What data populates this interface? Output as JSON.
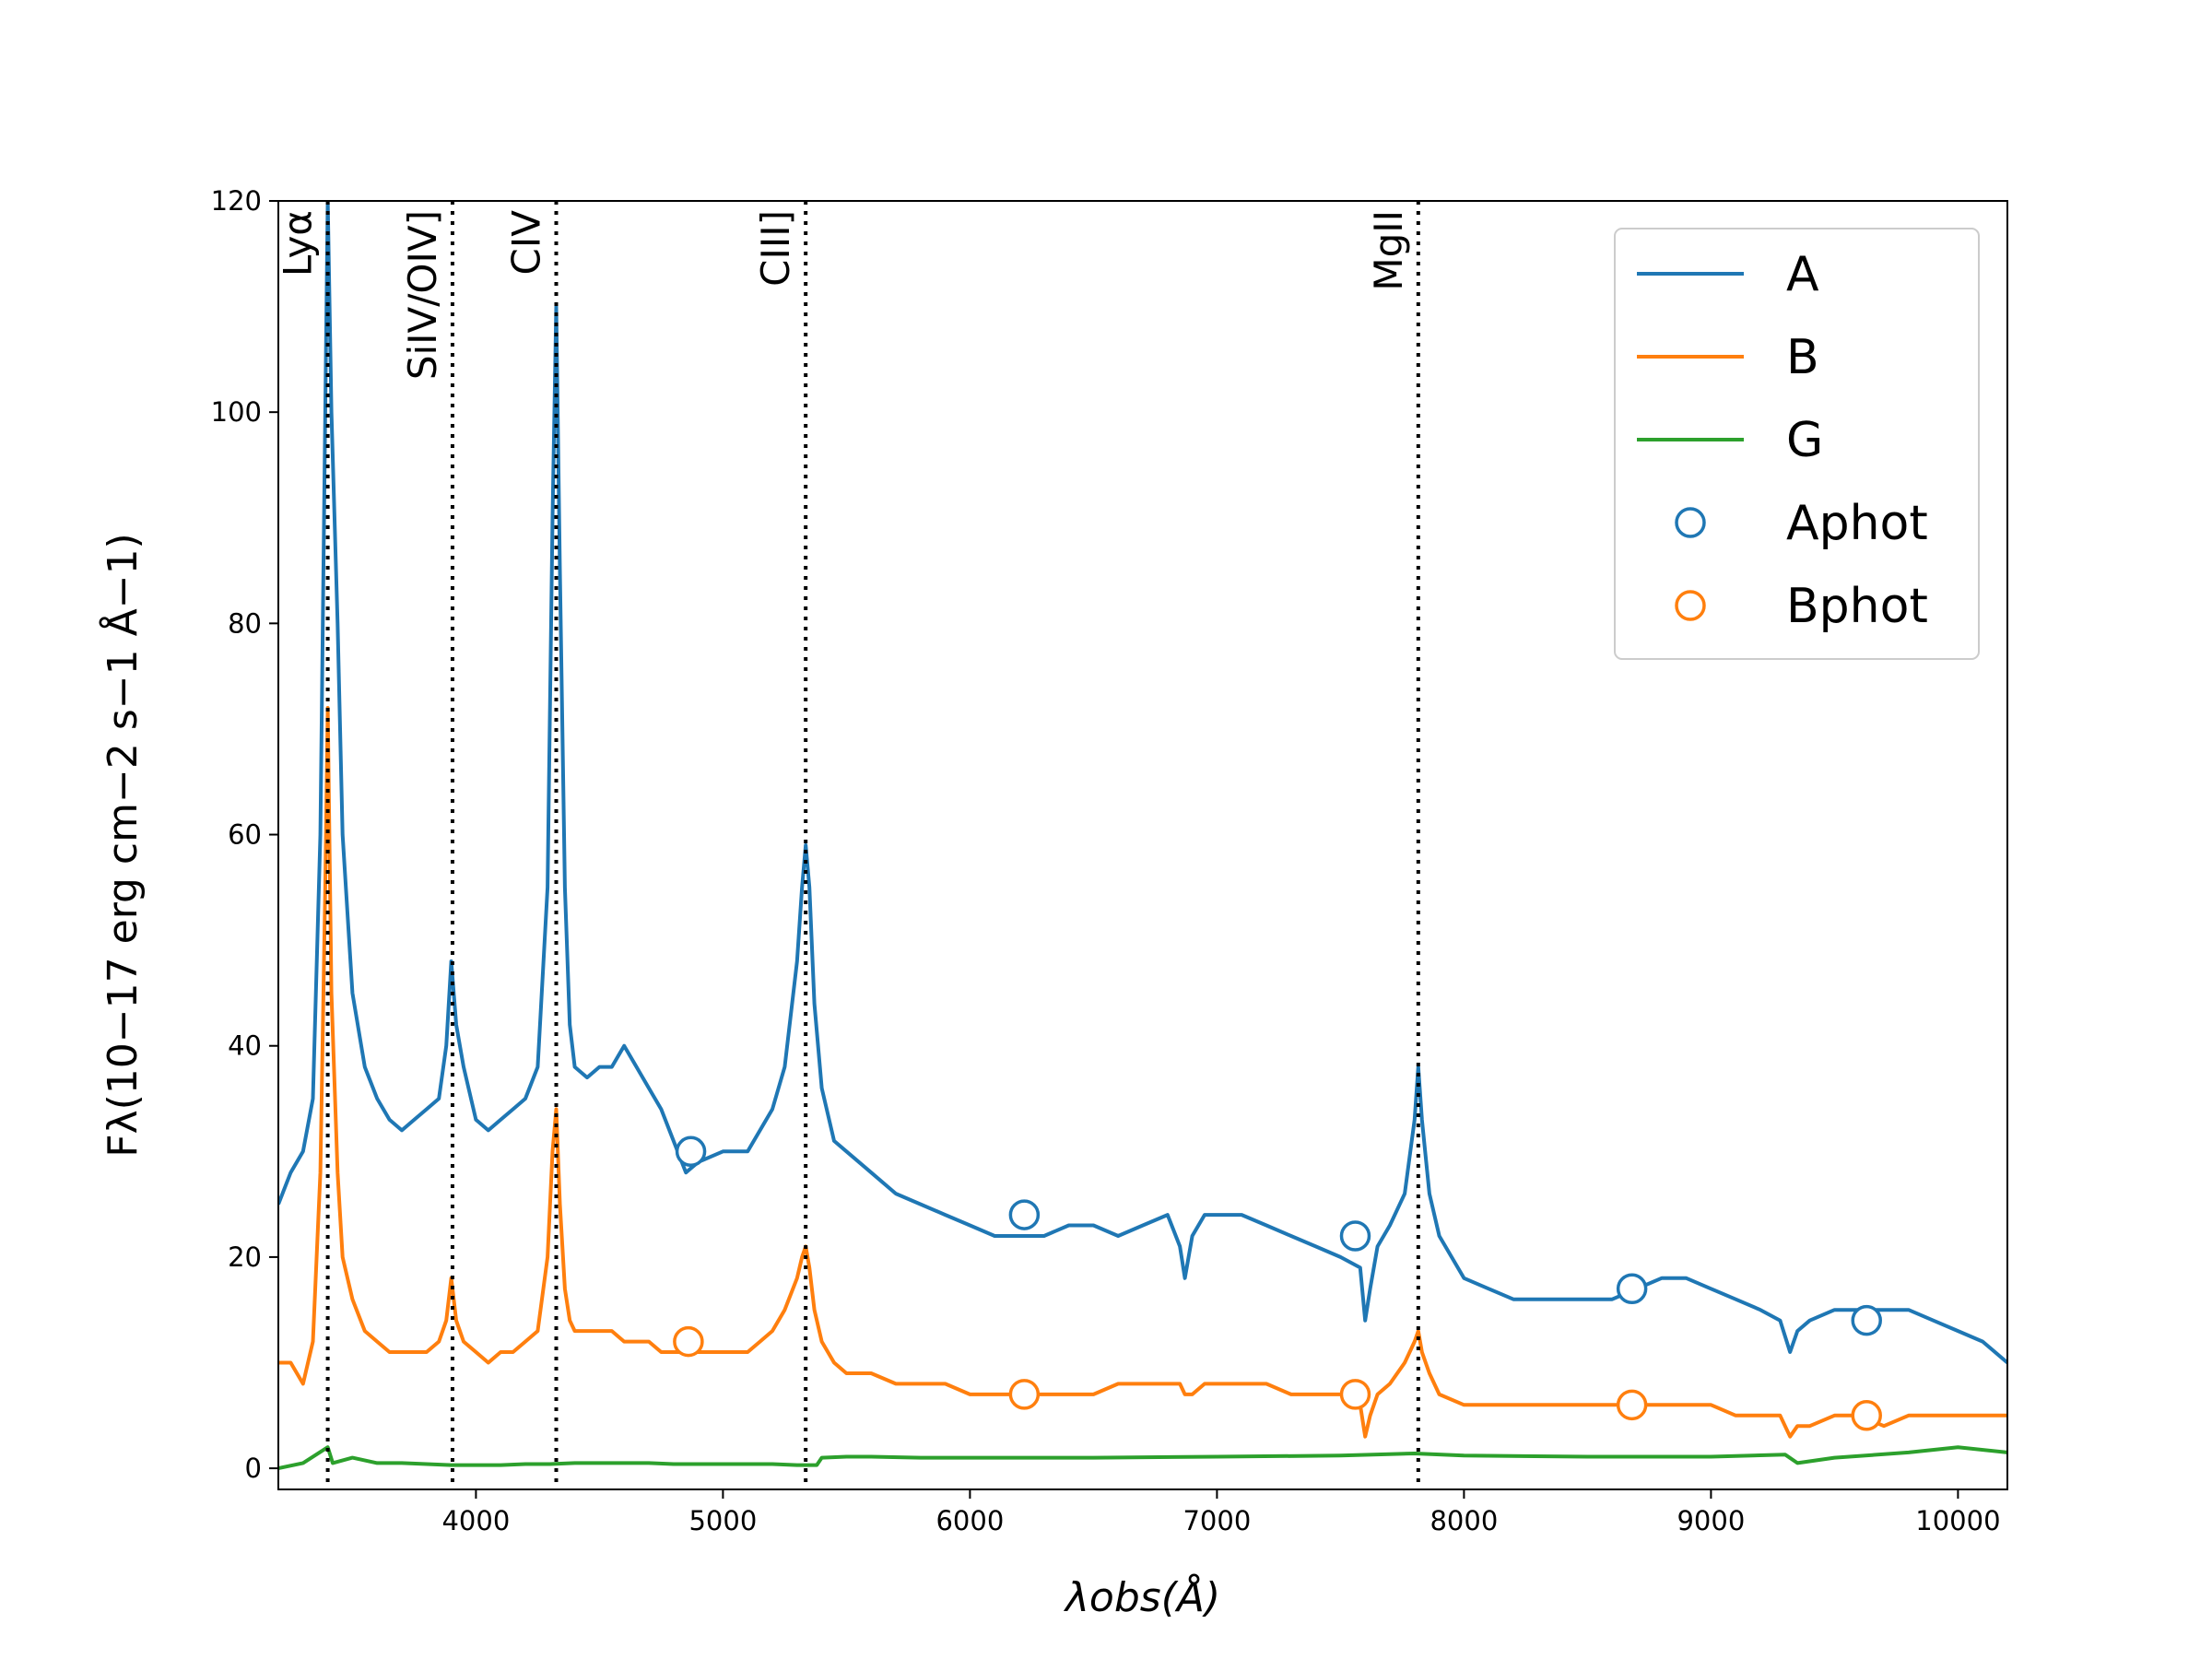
{
  "chart_data": {
    "type": "line",
    "title": "",
    "xlabel": "λobs(Å)",
    "ylabel": "Fλ(10−17 erg cm−2 s−1 Å−1)",
    "xlim": [
      3200,
      10200
    ],
    "ylim": [
      -2,
      120
    ],
    "xticks": [
      4000,
      5000,
      6000,
      7000,
      8000,
      9000,
      10000
    ],
    "yticks": [
      0,
      20,
      40,
      60,
      80,
      100,
      120
    ],
    "legend": {
      "location": "top-right",
      "entries": [
        "A",
        "B",
        "G",
        "Aphot",
        "Bphot"
      ]
    },
    "colors": {
      "A": "#1f77b4",
      "B": "#ff7f0e",
      "G": "#2ca02c",
      "lines": "#000000"
    },
    "emission_lines": [
      {
        "label": "Lyα",
        "wavelength": 3400
      },
      {
        "label": "SiIV/OIV]",
        "wavelength": 3905
      },
      {
        "label": "CIV",
        "wavelength": 4325
      },
      {
        "label": "CIII]",
        "wavelength": 5335
      },
      {
        "label": "MgII",
        "wavelength": 7815
      }
    ],
    "series": [
      {
        "name": "A",
        "kind": "line",
        "x": [
          3200,
          3250,
          3300,
          3340,
          3370,
          3390,
          3400,
          3415,
          3440,
          3460,
          3500,
          3550,
          3600,
          3650,
          3700,
          3750,
          3800,
          3850,
          3880,
          3900,
          3920,
          3950,
          4000,
          4050,
          4100,
          4150,
          4200,
          4250,
          4290,
          4310,
          4325,
          4340,
          4360,
          4380,
          4400,
          4450,
          4500,
          4550,
          4600,
          4650,
          4700,
          4750,
          4800,
          4850,
          4900,
          5000,
          5100,
          5150,
          5200,
          5250,
          5300,
          5320,
          5335,
          5350,
          5370,
          5400,
          5450,
          5500,
          5600,
          5700,
          5800,
          5900,
          6000,
          6100,
          6200,
          6300,
          6400,
          6500,
          6600,
          6700,
          6800,
          6850,
          6870,
          6900,
          6950,
          7000,
          7100,
          7200,
          7300,
          7400,
          7500,
          7580,
          7600,
          7620,
          7650,
          7700,
          7760,
          7800,
          7815,
          7830,
          7860,
          7900,
          8000,
          8100,
          8200,
          8300,
          8400,
          8500,
          8600,
          8700,
          8800,
          8900,
          9000,
          9100,
          9200,
          9280,
          9320,
          9350,
          9400,
          9500,
          9600,
          9700,
          9800,
          9900,
          10000,
          10100,
          10200
        ],
        "y": [
          25,
          28,
          30,
          35,
          60,
          100,
          120,
          100,
          80,
          60,
          45,
          38,
          35,
          33,
          32,
          33,
          34,
          35,
          40,
          48,
          42,
          38,
          33,
          32,
          33,
          34,
          35,
          38,
          55,
          90,
          110,
          85,
          55,
          42,
          38,
          37,
          38,
          38,
          40,
          38,
          36,
          34,
          31,
          28,
          29,
          30,
          30,
          32,
          34,
          38,
          48,
          55,
          59,
          55,
          44,
          36,
          31,
          30,
          28,
          26,
          25,
          24,
          23,
          22,
          22,
          22,
          23,
          23,
          22,
          23,
          24,
          21,
          18,
          22,
          24,
          24,
          24,
          23,
          22,
          21,
          20,
          19,
          14,
          17,
          21,
          23,
          26,
          33,
          38,
          33,
          26,
          22,
          18,
          17,
          16,
          16,
          16,
          16,
          16,
          17,
          18,
          18,
          17,
          16,
          15,
          14,
          11,
          13,
          14,
          15,
          15,
          15,
          15,
          14,
          13,
          12,
          10
        ]
      },
      {
        "name": "B",
        "kind": "line",
        "x": [
          3200,
          3250,
          3300,
          3340,
          3370,
          3390,
          3400,
          3415,
          3440,
          3460,
          3500,
          3550,
          3600,
          3650,
          3700,
          3750,
          3800,
          3850,
          3880,
          3900,
          3920,
          3950,
          4000,
          4050,
          4100,
          4150,
          4200,
          4250,
          4290,
          4310,
          4325,
          4340,
          4360,
          4380,
          4400,
          4450,
          4500,
          4550,
          4600,
          4650,
          4700,
          4750,
          4800,
          4850,
          4900,
          5000,
          5100,
          5150,
          5200,
          5250,
          5300,
          5320,
          5335,
          5350,
          5370,
          5400,
          5450,
          5500,
          5600,
          5700,
          5800,
          5900,
          6000,
          6100,
          6200,
          6300,
          6400,
          6500,
          6600,
          6700,
          6800,
          6850,
          6870,
          6900,
          6950,
          7000,
          7100,
          7200,
          7300,
          7400,
          7500,
          7580,
          7600,
          7620,
          7650,
          7700,
          7760,
          7800,
          7815,
          7830,
          7860,
          7900,
          8000,
          8100,
          8200,
          8300,
          8400,
          8500,
          8600,
          8700,
          8800,
          8900,
          9000,
          9100,
          9200,
          9280,
          9320,
          9350,
          9400,
          9500,
          9600,
          9700,
          9800,
          9900,
          10000,
          10100,
          10200
        ],
        "y": [
          10,
          10,
          8,
          12,
          28,
          55,
          72,
          45,
          28,
          20,
          16,
          13,
          12,
          11,
          11,
          11,
          11,
          12,
          14,
          18,
          14,
          12,
          11,
          10,
          11,
          11,
          12,
          13,
          20,
          30,
          34,
          25,
          17,
          14,
          13,
          13,
          13,
          13,
          12,
          12,
          12,
          11,
          11,
          11,
          11,
          11,
          11,
          12,
          13,
          15,
          18,
          20,
          21,
          19,
          15,
          12,
          10,
          9,
          9,
          8,
          8,
          8,
          7,
          7,
          7,
          7,
          7,
          7,
          8,
          8,
          8,
          8,
          7,
          7,
          8,
          8,
          8,
          8,
          7,
          7,
          7,
          6,
          3,
          5,
          7,
          8,
          10,
          12,
          13,
          11,
          9,
          7,
          6,
          6,
          6,
          6,
          6,
          6,
          6,
          6,
          6,
          6,
          6,
          5,
          5,
          5,
          3,
          4,
          4,
          5,
          5,
          4,
          5,
          5,
          5,
          5,
          5
        ]
      },
      {
        "name": "G",
        "kind": "line",
        "x": [
          3200,
          3300,
          3400,
          3420,
          3500,
          3600,
          3700,
          3800,
          3900,
          4000,
          4100,
          4200,
          4300,
          4400,
          4500,
          4600,
          4700,
          4800,
          4900,
          5000,
          5100,
          5200,
          5300,
          5380,
          5400,
          5500,
          5600,
          5800,
          6000,
          6200,
          6500,
          7000,
          7500,
          7800,
          8000,
          8500,
          9000,
          9300,
          9350,
          9500,
          9800,
          10000,
          10200
        ],
        "y": [
          0,
          0.5,
          2,
          0.5,
          1,
          0.5,
          0.5,
          0.4,
          0.3,
          0.3,
          0.3,
          0.4,
          0.4,
          0.5,
          0.5,
          0.5,
          0.5,
          0.4,
          0.4,
          0.4,
          0.4,
          0.4,
          0.3,
          0.3,
          1,
          1.1,
          1.1,
          1,
          1,
          1,
          1,
          1.1,
          1.2,
          1.4,
          1.2,
          1.1,
          1.1,
          1.3,
          0.5,
          1,
          1.5,
          2,
          1.5
        ]
      },
      {
        "name": "Aphot",
        "kind": "marker",
        "x": [
          4870,
          6220,
          7560,
          8680,
          9630
        ],
        "y": [
          30,
          24,
          22,
          17,
          14
        ]
      },
      {
        "name": "Bphot",
        "kind": "marker",
        "x": [
          4860,
          6220,
          7560,
          8680,
          9630
        ],
        "y": [
          12,
          7,
          7,
          6,
          5
        ]
      }
    ]
  }
}
